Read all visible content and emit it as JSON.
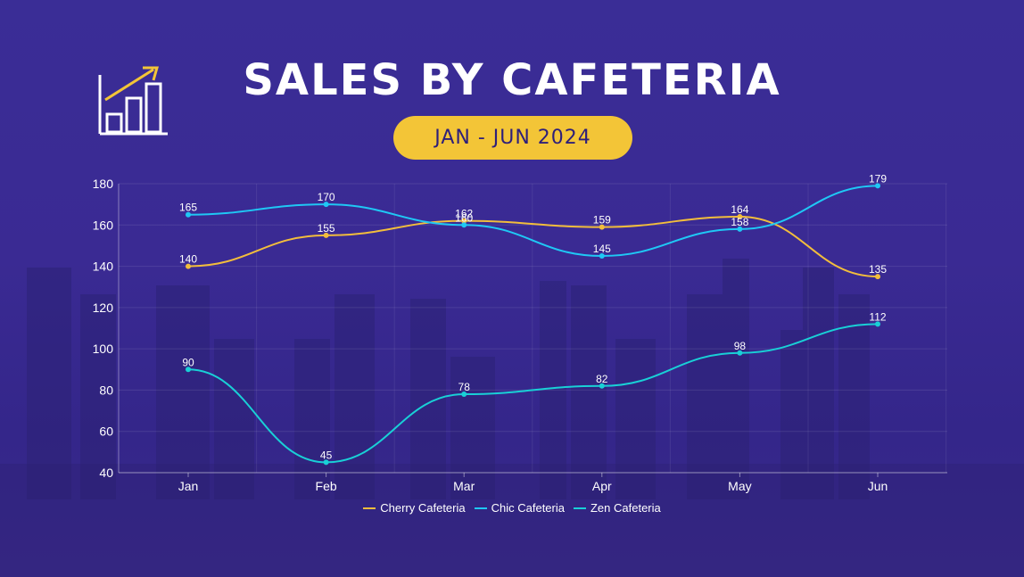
{
  "title": "SALES BY CAFETERIA",
  "date_range": "JAN - JUN 2024",
  "icon": "bar-chart-growth-icon",
  "colors": {
    "accent": "#f3c537",
    "cherry": "#f2bd3c",
    "chic": "#1fc8f5",
    "zen": "#19d0d6"
  },
  "chart_data": {
    "type": "line",
    "categories": [
      "Jan",
      "Feb",
      "Mar",
      "Apr",
      "May",
      "Jun"
    ],
    "ylim": [
      40,
      180
    ],
    "yticks": [
      40,
      60,
      80,
      100,
      120,
      140,
      160,
      180
    ],
    "grid": true,
    "legend_position": "bottom",
    "series": [
      {
        "name": "Cherry Cafeteria",
        "color": "#f2bd3c",
        "values": [
          140,
          155,
          162,
          159,
          164,
          135
        ]
      },
      {
        "name": "Chic Cafeteria",
        "color": "#1fc8f5",
        "values": [
          165,
          170,
          160,
          145,
          158,
          179
        ]
      },
      {
        "name": "Zen Cafeteria",
        "color": "#19d0d6",
        "values": [
          90,
          45,
          78,
          82,
          98,
          112
        ]
      }
    ]
  }
}
